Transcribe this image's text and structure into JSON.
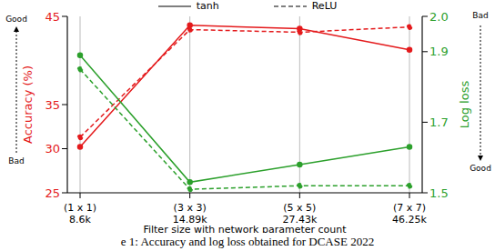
{
  "chart_data": {
    "type": "line",
    "caption": "e 1: Accuracy and log loss obtained for DCASE 2022",
    "x_label": "Filter size with network parameter count",
    "y_label": "Accuracy (%)",
    "y2_label": "Log loss",
    "categories": [
      "(1 x 1)",
      "(3 x 3)",
      "(5 x 5)",
      "(7 x 7)"
    ],
    "param_counts": [
      "8.6k",
      "14.89k",
      "27.43k",
      "46.25k"
    ],
    "ylim": [
      25,
      45
    ],
    "yticks": [
      25,
      30,
      35,
      45
    ],
    "y2lim": [
      1.5,
      2.0
    ],
    "y2ticks": [
      1.5,
      1.7,
      1.9,
      {
        "value": 2,
        "label": "2.0"
      }
    ],
    "grid": true,
    "legend": "top",
    "left_annotation": {
      "top": "Good",
      "bottom": "Bad"
    },
    "right_annotation": {
      "top": "Bad",
      "bottom": "Good"
    },
    "series": [
      {
        "name": "tanh",
        "color": "#e41a1c",
        "line_style": "solid",
        "marker": "circle",
        "axis": "y",
        "values": [
          30.2,
          44.0,
          43.6,
          41.2
        ]
      },
      {
        "name": "ReLU",
        "color": "#e41a1c",
        "line_style": "dashed",
        "marker": "circle",
        "axis": "y",
        "values": [
          31.3,
          43.5,
          43.2,
          43.8
        ]
      },
      {
        "name": "tanh",
        "color": "#2ca02c",
        "line_style": "solid",
        "marker": "circle",
        "axis": "y2",
        "values": [
          1.89,
          1.53,
          1.58,
          1.63
        ]
      },
      {
        "name": "ReLU",
        "color": "#2ca02c",
        "line_style": "dashed",
        "marker": "circle",
        "axis": "y2",
        "values": [
          1.85,
          1.51,
          1.52,
          1.52
        ]
      }
    ]
  }
}
